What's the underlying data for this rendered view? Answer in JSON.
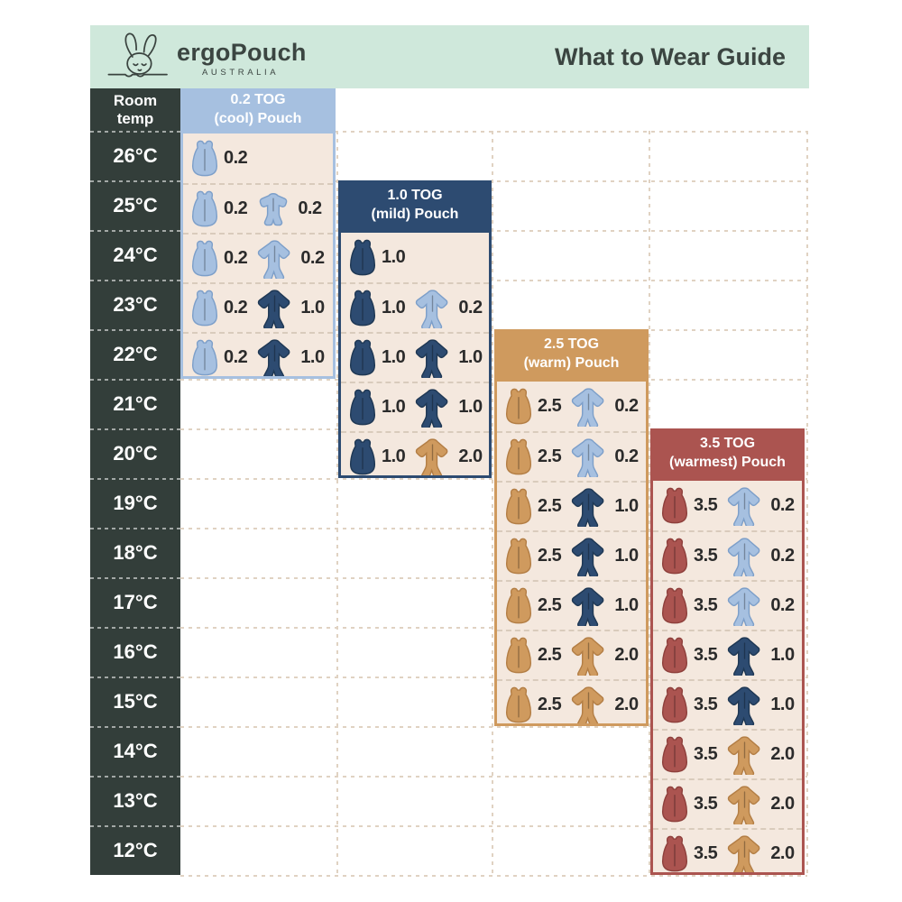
{
  "header": {
    "brand": "ergoPouch",
    "brand_sub": "AUSTRALIA",
    "title": "What to Wear Guide"
  },
  "room_temp": {
    "line1": "Room",
    "line2": "temp"
  },
  "temps": [
    "26°C",
    "25°C",
    "24°C",
    "23°C",
    "22°C",
    "21°C",
    "20°C",
    "19°C",
    "18°C",
    "17°C",
    "16°C",
    "15°C",
    "14°C",
    "13°C",
    "12°C"
  ],
  "colors": {
    "mint": "#cfe8db",
    "charcoal": "#333e3a",
    "blue": "#a6c0e0",
    "navy": "#2d4b71",
    "tan": "#cf9a5e",
    "red": "#ab5450",
    "cream": "#f4e8de",
    "white": "#ffffff",
    "tog_text": "#2b2b2b"
  },
  "chart_data": {
    "type": "table",
    "title": "What to Wear Guide",
    "row_header": "Room temp",
    "temps_c": [
      26,
      25,
      24,
      23,
      22,
      21,
      20,
      19,
      18,
      17,
      16,
      15,
      14,
      13,
      12
    ],
    "pouches": [
      {
        "name": "0.2 TOG (cool) Pouch",
        "title_line1": "0.2 TOG",
        "title_line2": "(cool) Pouch",
        "color_key": "blue",
        "header_at_temp_c": null,
        "rows": [
          {
            "temp_c": 26,
            "items": [
              {
                "icon": "pouch",
                "color": "blue",
                "tog": "0.2"
              }
            ]
          },
          {
            "temp_c": 25,
            "items": [
              {
                "icon": "pouch",
                "color": "blue",
                "tog": "0.2"
              },
              {
                "icon": "romper",
                "color": "blue",
                "tog": "0.2"
              }
            ]
          },
          {
            "temp_c": 24,
            "items": [
              {
                "icon": "pouch",
                "color": "blue",
                "tog": "0.2"
              },
              {
                "icon": "onesie",
                "color": "blue",
                "tog": "0.2"
              }
            ]
          },
          {
            "temp_c": 23,
            "items": [
              {
                "icon": "pouch",
                "color": "blue",
                "tog": "0.2"
              },
              {
                "icon": "onesie",
                "color": "navy",
                "tog": "1.0"
              }
            ]
          },
          {
            "temp_c": 22,
            "items": [
              {
                "icon": "pouch",
                "color": "blue",
                "tog": "0.2"
              },
              {
                "icon": "onesie",
                "color": "navy",
                "tog": "1.0"
              },
              {
                "icon": "singlet",
                "color": "white",
                "tog": null
              }
            ]
          }
        ]
      },
      {
        "name": "1.0 TOG (mild) Pouch",
        "title_line1": "1.0 TOG",
        "title_line2": "(mild) Pouch",
        "color_key": "navy",
        "header_at_temp_c": 25,
        "rows": [
          {
            "temp_c": 24,
            "items": [
              {
                "icon": "pouch",
                "color": "navy",
                "tog": "1.0"
              }
            ]
          },
          {
            "temp_c": 23,
            "items": [
              {
                "icon": "pouch",
                "color": "navy",
                "tog": "1.0"
              },
              {
                "icon": "onesie",
                "color": "blue",
                "tog": "0.2"
              }
            ]
          },
          {
            "temp_c": 22,
            "items": [
              {
                "icon": "pouch",
                "color": "navy",
                "tog": "1.0"
              },
              {
                "icon": "onesie",
                "color": "navy",
                "tog": "1.0"
              }
            ]
          },
          {
            "temp_c": 21,
            "items": [
              {
                "icon": "pouch",
                "color": "navy",
                "tog": "1.0"
              },
              {
                "icon": "onesie",
                "color": "navy",
                "tog": "1.0"
              },
              {
                "icon": "singlet",
                "color": "white",
                "tog": null
              }
            ]
          },
          {
            "temp_c": 20,
            "items": [
              {
                "icon": "pouch",
                "color": "navy",
                "tog": "1.0"
              },
              {
                "icon": "onesie",
                "color": "tan",
                "tog": "2.0"
              }
            ]
          }
        ]
      },
      {
        "name": "2.5 TOG (warm) Pouch",
        "title_line1": "2.5 TOG",
        "title_line2": "(warm) Pouch",
        "color_key": "tan",
        "header_at_temp_c": 22,
        "rows": [
          {
            "temp_c": 21,
            "items": [
              {
                "icon": "pouch",
                "color": "tan",
                "tog": "2.5"
              },
              {
                "icon": "onesie",
                "color": "blue",
                "tog": "0.2"
              }
            ]
          },
          {
            "temp_c": 20,
            "items": [
              {
                "icon": "pouch",
                "color": "tan",
                "tog": "2.5"
              },
              {
                "icon": "onesie",
                "color": "blue",
                "tog": "0.2"
              },
              {
                "icon": "singlet",
                "color": "white",
                "tog": null
              }
            ]
          },
          {
            "temp_c": 19,
            "items": [
              {
                "icon": "pouch",
                "color": "tan",
                "tog": "2.5"
              },
              {
                "icon": "onesie",
                "color": "navy",
                "tog": "1.0"
              }
            ]
          },
          {
            "temp_c": 18,
            "items": [
              {
                "icon": "pouch",
                "color": "tan",
                "tog": "2.5"
              },
              {
                "icon": "onesie",
                "color": "navy",
                "tog": "1.0"
              },
              {
                "icon": "singlet",
                "color": "white",
                "tog": null
              }
            ]
          },
          {
            "temp_c": 17,
            "items": [
              {
                "icon": "pouch",
                "color": "tan",
                "tog": "2.5"
              },
              {
                "icon": "onesie",
                "color": "navy",
                "tog": "1.0"
              },
              {
                "icon": "singlet",
                "color": "white",
                "tog": null
              }
            ]
          },
          {
            "temp_c": 16,
            "items": [
              {
                "icon": "pouch",
                "color": "tan",
                "tog": "2.5"
              },
              {
                "icon": "onesie",
                "color": "tan",
                "tog": "2.0"
              }
            ]
          },
          {
            "temp_c": 15,
            "items": [
              {
                "icon": "pouch",
                "color": "tan",
                "tog": "2.5"
              },
              {
                "icon": "onesie",
                "color": "tan",
                "tog": "2.0"
              },
              {
                "icon": "singlet",
                "color": "white",
                "tog": null
              }
            ]
          }
        ]
      },
      {
        "name": "3.5 TOG (warmest) Pouch",
        "title_line1": "3.5 TOG",
        "title_line2": "(warmest) Pouch",
        "color_key": "red",
        "header_at_temp_c": 20,
        "rows": [
          {
            "temp_c": 19,
            "items": [
              {
                "icon": "pouch",
                "color": "red",
                "tog": "3.5"
              },
              {
                "icon": "onesie",
                "color": "blue",
                "tog": "0.2"
              }
            ]
          },
          {
            "temp_c": 18,
            "items": [
              {
                "icon": "pouch",
                "color": "red",
                "tog": "3.5"
              },
              {
                "icon": "onesie",
                "color": "blue",
                "tog": "0.2"
              }
            ]
          },
          {
            "temp_c": 17,
            "items": [
              {
                "icon": "pouch",
                "color": "red",
                "tog": "3.5"
              },
              {
                "icon": "onesie",
                "color": "blue",
                "tog": "0.2"
              },
              {
                "icon": "singlet",
                "color": "white",
                "tog": null
              }
            ]
          },
          {
            "temp_c": 16,
            "items": [
              {
                "icon": "pouch",
                "color": "red",
                "tog": "3.5"
              },
              {
                "icon": "onesie",
                "color": "navy",
                "tog": "1.0"
              }
            ]
          },
          {
            "temp_c": 15,
            "items": [
              {
                "icon": "pouch",
                "color": "red",
                "tog": "3.5"
              },
              {
                "icon": "onesie",
                "color": "navy",
                "tog": "1.0"
              },
              {
                "icon": "singlet",
                "color": "white",
                "tog": null
              }
            ]
          },
          {
            "temp_c": 14,
            "items": [
              {
                "icon": "pouch",
                "color": "red",
                "tog": "3.5"
              },
              {
                "icon": "onesie",
                "color": "tan",
                "tog": "2.0"
              }
            ]
          },
          {
            "temp_c": 13,
            "items": [
              {
                "icon": "pouch",
                "color": "red",
                "tog": "3.5"
              },
              {
                "icon": "onesie",
                "color": "tan",
                "tog": "2.0"
              },
              {
                "icon": "singlet",
                "color": "white",
                "tog": null
              }
            ]
          },
          {
            "temp_c": 12,
            "items": [
              {
                "icon": "pouch",
                "color": "red",
                "tog": "3.5"
              },
              {
                "icon": "onesie",
                "color": "tan",
                "tog": "2.0"
              },
              {
                "icon": "singlet",
                "color": "white",
                "tog": null
              }
            ]
          }
        ]
      }
    ]
  }
}
